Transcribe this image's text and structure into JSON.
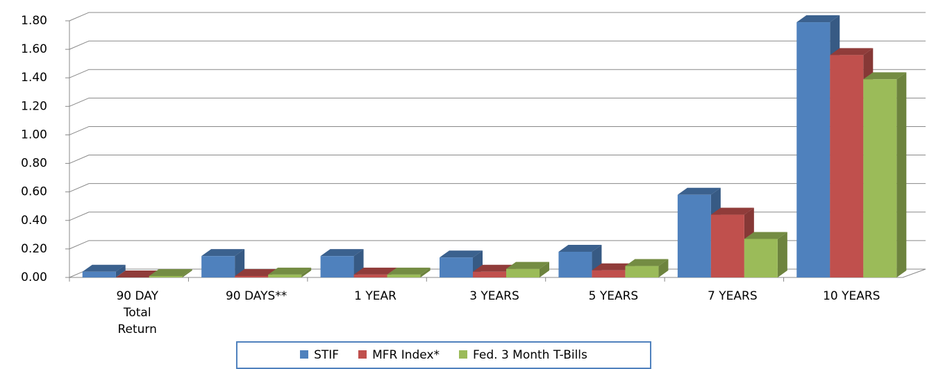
{
  "chart_data": {
    "type": "bar3d",
    "categories": [
      "90 DAY Total Return",
      "90 DAYS**",
      "1 YEAR",
      "3 YEARS",
      "5 YEARS",
      "7 YEARS",
      "10 YEARS"
    ],
    "series": [
      {
        "name": "STIF",
        "color": "#4f81bd",
        "values": [
          0.04,
          0.15,
          0.15,
          0.14,
          0.18,
          0.58,
          1.79
        ]
      },
      {
        "name": "MFR Index*",
        "color": "#c0504d",
        "values": [
          0.0,
          0.01,
          0.02,
          0.04,
          0.05,
          0.44,
          1.56
        ]
      },
      {
        "name": "Fed. 3 Month T-Bills",
        "color": "#9bbb59",
        "values": [
          0.01,
          0.02,
          0.02,
          0.06,
          0.08,
          0.27,
          1.39
        ]
      }
    ],
    "ylim": [
      0,
      1.8
    ],
    "yticks": [
      {
        "value": 0,
        "label": "0.00"
      },
      {
        "value": 0.2,
        "label": "0.20"
      },
      {
        "value": 0.4,
        "label": "0.40"
      },
      {
        "value": 0.6,
        "label": "0.60"
      },
      {
        "value": 0.8,
        "label": "0.80"
      },
      {
        "value": 1.0,
        "label": "1.00"
      },
      {
        "value": 1.2,
        "label": "1.20"
      },
      {
        "value": 1.4,
        "label": "1.40"
      },
      {
        "value": 1.6,
        "label": "1.60"
      },
      {
        "value": 1.8,
        "label": "1.80"
      }
    ],
    "grid": true,
    "legend": "bottom"
  }
}
